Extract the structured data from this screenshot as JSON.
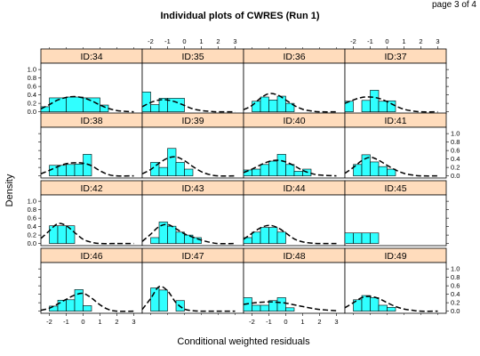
{
  "page_label": "page 3 of 4",
  "chart_data": {
    "type": "bar",
    "title": "Individual plots of CWRES (Run 1)",
    "xlabel": "Conditional weighted residuals",
    "ylabel": "Density",
    "xlim": [
      -2.5,
      3.5
    ],
    "ylim": [
      -0.05,
      1.15
    ],
    "xticks": [
      "-2",
      "-1",
      "0",
      "1",
      "2",
      "3"
    ],
    "yticks": [
      "0.0",
      "0.2",
      "0.4",
      "0.6",
      "0.8",
      "1.0"
    ],
    "bin_edges": [
      -2.5,
      -2,
      -1.5,
      -1,
      -0.5,
      0,
      0.5,
      1,
      1.5,
      2,
      2.5,
      3,
      3.5
    ],
    "layout": {
      "columns": 4,
      "rows": 4
    },
    "colors": {
      "bar_fill": "#30ffff",
      "strip_fill": "#ffdcbc",
      "density_line": "#000000",
      "flat_line": "#808080"
    },
    "panels": [
      {
        "label": "ID:34",
        "bars": [
          [
            -2.5,
            -2,
            0.12
          ],
          [
            -2,
            -1,
            0.33
          ],
          [
            -1,
            0,
            0.35
          ],
          [
            0,
            1,
            0.33
          ],
          [
            1,
            1.5,
            0.16
          ]
        ],
        "curve": [
          [
            -2.5,
            0.07
          ],
          [
            -2,
            0.17
          ],
          [
            -1.5,
            0.28
          ],
          [
            -1,
            0.34
          ],
          [
            -0.5,
            0.36
          ],
          [
            0,
            0.33
          ],
          [
            0.5,
            0.26
          ],
          [
            1,
            0.16
          ],
          [
            1.5,
            0.08
          ],
          [
            2,
            0.03
          ],
          [
            2.5,
            0.01
          ],
          [
            3,
            0
          ]
        ]
      },
      {
        "label": "ID:35",
        "bars": [
          [
            -2.5,
            -2,
            0.47
          ],
          [
            -2,
            -1.5,
            0.17
          ],
          [
            -1.5,
            -1,
            0.32
          ],
          [
            -1,
            0,
            0.32
          ]
        ],
        "curve": [
          [
            -2.5,
            0.12
          ],
          [
            -2,
            0.22
          ],
          [
            -1.5,
            0.28
          ],
          [
            -1,
            0.28
          ],
          [
            -0.5,
            0.23
          ],
          [
            0,
            0.15
          ],
          [
            0.5,
            0.07
          ],
          [
            1,
            0.03
          ],
          [
            1.5,
            0.01
          ],
          [
            2,
            0
          ],
          [
            3,
            0
          ]
        ]
      },
      {
        "label": "ID:36",
        "bars": [
          [
            -2,
            -1.5,
            0.25
          ],
          [
            -1.5,
            -1,
            0.35
          ],
          [
            -1,
            -0.5,
            0.28
          ],
          [
            -0.5,
            0,
            0.37
          ],
          [
            0,
            0.5,
            0.2
          ]
        ],
        "curve": [
          [
            -2.5,
            0.05
          ],
          [
            -2,
            0.15
          ],
          [
            -1.5,
            0.32
          ],
          [
            -1,
            0.43
          ],
          [
            -0.5,
            0.4
          ],
          [
            0,
            0.28
          ],
          [
            0.5,
            0.15
          ],
          [
            1,
            0.06
          ],
          [
            1.5,
            0.02
          ],
          [
            2,
            0
          ],
          [
            3,
            0
          ]
        ]
      },
      {
        "label": "ID:37",
        "bars": [
          [
            -2.5,
            -2,
            0.25
          ],
          [
            -1.5,
            -1,
            0.27
          ],
          [
            -1,
            -0.5,
            0.51
          ],
          [
            -0.5,
            0,
            0.25
          ],
          [
            0,
            0.5,
            0.26
          ]
        ],
        "curve": [
          [
            -2.5,
            0.2
          ],
          [
            -2,
            0.28
          ],
          [
            -1.5,
            0.34
          ],
          [
            -1,
            0.35
          ],
          [
            -0.5,
            0.32
          ],
          [
            0,
            0.24
          ],
          [
            0.5,
            0.14
          ],
          [
            1,
            0.06
          ],
          [
            1.5,
            0.02
          ],
          [
            2,
            0
          ],
          [
            3,
            0
          ]
        ]
      },
      {
        "label": "ID:38",
        "bars": [
          [
            -2,
            -1.5,
            0.25
          ],
          [
            -1.5,
            -1,
            0.25
          ],
          [
            -1,
            -0.5,
            0.27
          ],
          [
            -0.5,
            0,
            0.28
          ],
          [
            0,
            0.5,
            0.51
          ]
        ],
        "curve": [
          [
            -2.5,
            0.05
          ],
          [
            -2,
            0.13
          ],
          [
            -1.5,
            0.22
          ],
          [
            -1,
            0.29
          ],
          [
            -0.5,
            0.31
          ],
          [
            0,
            0.3
          ],
          [
            0.5,
            0.24
          ],
          [
            1,
            0.12
          ],
          [
            1.5,
            0.03
          ],
          [
            2,
            0
          ],
          [
            3,
            0
          ]
        ]
      },
      {
        "label": "ID:39",
        "bars": [
          [
            -2,
            -1.5,
            0.32
          ],
          [
            -1.5,
            -1,
            0.2
          ],
          [
            -1,
            -0.5,
            0.65
          ],
          [
            -0.5,
            0,
            0.32
          ],
          [
            0,
            0.5,
            0.16
          ]
        ],
        "curve": [
          [
            -2.5,
            0.05
          ],
          [
            -2,
            0.15
          ],
          [
            -1.5,
            0.3
          ],
          [
            -1,
            0.42
          ],
          [
            -0.5,
            0.45
          ],
          [
            0,
            0.36
          ],
          [
            0.5,
            0.22
          ],
          [
            1,
            0.1
          ],
          [
            1.5,
            0.03
          ],
          [
            2,
            0
          ],
          [
            3,
            0
          ]
        ]
      },
      {
        "label": "ID:40",
        "bars": [
          [
            -2.5,
            -2,
            0.14
          ],
          [
            -2,
            -1.5,
            0.16
          ],
          [
            -1.5,
            -1,
            0.27
          ],
          [
            -1,
            -0.5,
            0.35
          ],
          [
            -0.5,
            0,
            0.51
          ],
          [
            0,
            0.5,
            0.27
          ],
          [
            0.5,
            1,
            0.11
          ],
          [
            1,
            1.5,
            0.16
          ]
        ],
        "curve": [
          [
            -2.5,
            0.08
          ],
          [
            -2,
            0.16
          ],
          [
            -1.5,
            0.26
          ],
          [
            -1,
            0.34
          ],
          [
            -0.5,
            0.37
          ],
          [
            0,
            0.33
          ],
          [
            0.5,
            0.24
          ],
          [
            1,
            0.13
          ],
          [
            1.5,
            0.06
          ],
          [
            2,
            0.02
          ],
          [
            3,
            0
          ]
        ]
      },
      {
        "label": "ID:41",
        "bars": [
          [
            -2,
            -1.5,
            0.27
          ],
          [
            -1.5,
            -1,
            0.5
          ],
          [
            -1,
            -0.5,
            0.33
          ],
          [
            -0.5,
            0,
            0.22
          ],
          [
            0,
            0.5,
            0.16
          ]
        ],
        "curve": [
          [
            -2.5,
            0.06
          ],
          [
            -2,
            0.2
          ],
          [
            -1.5,
            0.36
          ],
          [
            -1,
            0.44
          ],
          [
            -0.5,
            0.37
          ],
          [
            0,
            0.25
          ],
          [
            0.5,
            0.14
          ],
          [
            1,
            0.06
          ],
          [
            1.5,
            0.02
          ],
          [
            2,
            0
          ],
          [
            3,
            0
          ]
        ]
      },
      {
        "label": "ID:42",
        "bars": [
          [
            -2,
            -1.5,
            0.42
          ],
          [
            -1.5,
            -1,
            0.42
          ],
          [
            -1,
            -0.5,
            0.42
          ]
        ],
        "curve": [
          [
            -2.5,
            0.12
          ],
          [
            -2,
            0.3
          ],
          [
            -1.5,
            0.47
          ],
          [
            -1,
            0.42
          ],
          [
            -0.5,
            0.26
          ],
          [
            0,
            0.1
          ],
          [
            0.5,
            0.03
          ],
          [
            1,
            0
          ],
          [
            2,
            0
          ],
          [
            3,
            0
          ]
        ]
      },
      {
        "label": "ID:43",
        "bars": [
          [
            -2,
            -1.5,
            0.14
          ],
          [
            -1.5,
            -1,
            0.51
          ],
          [
            -1,
            -0.5,
            0.41
          ],
          [
            -0.5,
            0,
            0.27
          ],
          [
            0,
            0.5,
            0.2
          ],
          [
            0.5,
            1,
            0.14
          ]
        ],
        "curve": [
          [
            -2.5,
            0.05
          ],
          [
            -2,
            0.22
          ],
          [
            -1.5,
            0.4
          ],
          [
            -1,
            0.45
          ],
          [
            -0.5,
            0.35
          ],
          [
            0,
            0.23
          ],
          [
            0.5,
            0.15
          ],
          [
            1,
            0.08
          ],
          [
            1.5,
            0.03
          ],
          [
            2,
            0
          ],
          [
            3,
            0
          ]
        ]
      },
      {
        "label": "ID:44",
        "bars": [
          [
            -2.5,
            -2,
            0.14
          ],
          [
            -2,
            -1.5,
            0.27
          ],
          [
            -1.5,
            -1,
            0.38
          ],
          [
            -1,
            -0.5,
            0.38
          ],
          [
            -0.5,
            0,
            0.27
          ]
        ],
        "curve": [
          [
            -2.5,
            0.1
          ],
          [
            -2,
            0.24
          ],
          [
            -1.5,
            0.37
          ],
          [
            -1,
            0.43
          ],
          [
            -0.5,
            0.38
          ],
          [
            0,
            0.25
          ],
          [
            0.5,
            0.11
          ],
          [
            1,
            0.04
          ],
          [
            1.5,
            0.01
          ],
          [
            2,
            0
          ],
          [
            3,
            0
          ]
        ]
      },
      {
        "label": "ID:45",
        "bars": [
          [
            -2.5,
            -2,
            0.25
          ],
          [
            -2,
            -1.5,
            0.25
          ],
          [
            -1.5,
            -1,
            0.25
          ],
          [
            -1,
            -0.5,
            0.25
          ]
        ],
        "curve": [],
        "flat_line": [
          -2.5,
          -0.5
        ]
      },
      {
        "label": "ID:46",
        "bars": [
          [
            -2,
            -1.5,
            0.12
          ],
          [
            -1.5,
            -1,
            0.26
          ],
          [
            -1,
            -0.5,
            0.27
          ],
          [
            -0.5,
            0,
            0.51
          ],
          [
            0,
            0.5,
            0.13
          ]
        ],
        "curve": [
          [
            -2.5,
            0.02
          ],
          [
            -2,
            0.07
          ],
          [
            -1.5,
            0.17
          ],
          [
            -1,
            0.28
          ],
          [
            -0.5,
            0.38
          ],
          [
            0,
            0.42
          ],
          [
            0.5,
            0.31
          ],
          [
            1,
            0.15
          ],
          [
            1.5,
            0.04
          ],
          [
            2,
            0
          ],
          [
            3,
            0
          ]
        ]
      },
      {
        "label": "ID:47",
        "bars": [
          [
            -2,
            -1.5,
            0.55
          ],
          [
            -1.5,
            -1,
            0.5
          ],
          [
            -0.5,
            0,
            0.25
          ]
        ],
        "curve": [
          [
            -2.5,
            0.04
          ],
          [
            -2,
            0.3
          ],
          [
            -1.5,
            0.58
          ],
          [
            -1,
            0.48
          ],
          [
            -0.5,
            0.2
          ],
          [
            0,
            0.05
          ],
          [
            0.5,
            0.01
          ],
          [
            1,
            0
          ],
          [
            2,
            0
          ],
          [
            3,
            0
          ]
        ]
      },
      {
        "label": "ID:48",
        "bars": [
          [
            -2.5,
            -2,
            0.32
          ],
          [
            -2,
            -1.5,
            0.14
          ],
          [
            -1.5,
            -1,
            0.14
          ],
          [
            -1,
            -0.5,
            0.25
          ],
          [
            -0.5,
            0,
            0.32
          ],
          [
            0,
            0.5,
            0.08
          ]
        ],
        "curve": [
          [
            -2.5,
            0.16
          ],
          [
            -2,
            0.19
          ],
          [
            -1.5,
            0.21
          ],
          [
            -1,
            0.22
          ],
          [
            -0.5,
            0.21
          ],
          [
            0,
            0.19
          ],
          [
            0.5,
            0.15
          ],
          [
            1,
            0.11
          ],
          [
            1.5,
            0.07
          ],
          [
            2,
            0.04
          ],
          [
            3,
            0.01
          ]
        ]
      },
      {
        "label": "ID:49",
        "bars": [
          [
            -2,
            -1.5,
            0.27
          ],
          [
            -1.5,
            -1,
            0.37
          ],
          [
            -1,
            -0.5,
            0.32
          ],
          [
            -0.5,
            0,
            0.14
          ],
          [
            0,
            0.5,
            0.09
          ]
        ],
        "curve": [
          [
            -2.5,
            0.08
          ],
          [
            -2,
            0.2
          ],
          [
            -1.5,
            0.32
          ],
          [
            -1,
            0.35
          ],
          [
            -0.5,
            0.3
          ],
          [
            0,
            0.2
          ],
          [
            0.5,
            0.11
          ],
          [
            1,
            0.05
          ],
          [
            1.5,
            0.02
          ],
          [
            2,
            0
          ],
          [
            3,
            0
          ]
        ]
      }
    ]
  }
}
